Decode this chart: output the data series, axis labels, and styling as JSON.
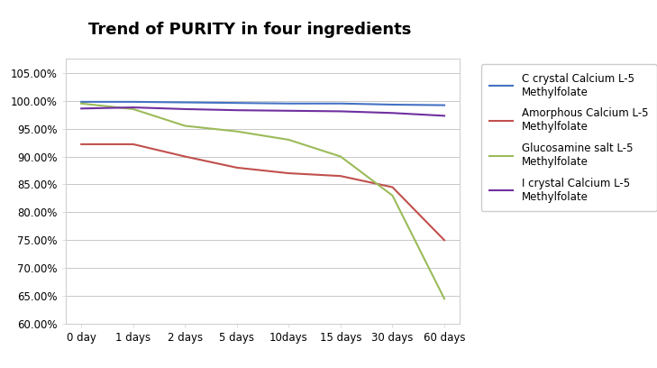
{
  "title": "Trend of PURITY in four ingredients",
  "x_labels": [
    "0 day",
    "1 days",
    "2 days",
    "5 days",
    "10days",
    "15 days",
    "30 days",
    "60 days"
  ],
  "series": [
    {
      "name": "C crystal Calcium L-5\nMethylfolate",
      "color": "#4472C4",
      "values": [
        99.8,
        99.8,
        99.7,
        99.6,
        99.5,
        99.5,
        99.3,
        99.2
      ]
    },
    {
      "name": "Amorphous Calcium L-5\nMethylfolate",
      "color": "#C0504D",
      "values": [
        92.2,
        92.2,
        90.0,
        88.0,
        87.0,
        86.5,
        84.5,
        75.0
      ]
    },
    {
      "name": "Glucosamine salt L-5\nMethylfolate",
      "color": "#9BBB59",
      "values": [
        99.5,
        98.5,
        95.5,
        94.5,
        93.0,
        90.0,
        83.0,
        64.5
      ]
    },
    {
      "name": "I crystal Calcium L-5\nMethylfolate",
      "color": "#7030A0",
      "values": [
        98.6,
        98.8,
        98.5,
        98.3,
        98.2,
        98.1,
        97.8,
        97.3
      ]
    }
  ],
  "ylim": [
    60.0,
    107.5
  ],
  "yticks": [
    60.0,
    65.0,
    70.0,
    75.0,
    80.0,
    85.0,
    90.0,
    95.0,
    100.0,
    105.0
  ],
  "background_color": "#ffffff",
  "plot_bg_color": "#ffffff",
  "border_color": "#d0d0d0",
  "grid_color": "#c8c8c8",
  "title_fontsize": 13,
  "tick_fontsize": 8.5,
  "legend_fontsize": 8.5
}
